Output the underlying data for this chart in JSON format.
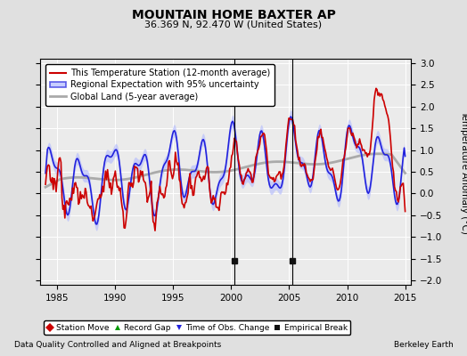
{
  "title": "MOUNTAIN HOME BAXTER AP",
  "subtitle": "36.369 N, 92.470 W (United States)",
  "ylabel": "Temperature Anomaly (°C)",
  "xlabel_note": "Data Quality Controlled and Aligned at Breakpoints",
  "credit": "Berkeley Earth",
  "ylim": [
    -2.1,
    3.1
  ],
  "xlim": [
    1983.5,
    2015.5
  ],
  "yticks": [
    -2,
    -1.5,
    -1,
    -0.5,
    0,
    0.5,
    1,
    1.5,
    2,
    2.5,
    3
  ],
  "xticks": [
    1985,
    1990,
    1995,
    2000,
    2005,
    2010,
    2015
  ],
  "bg_color": "#e0e0e0",
  "plot_bg_color": "#ebebeb",
  "grid_color": "#ffffff",
  "empirical_breaks": [
    2000.3,
    2005.3
  ],
  "uncertainty_color": "#b0b8ff",
  "uncertainty_alpha": 0.6,
  "regional_color": "#2222dd",
  "station_color": "#cc0000",
  "global_color": "#aaaaaa",
  "legend_items": [
    {
      "label": "This Temperature Station (12-month average)",
      "color": "#cc0000",
      "lw": 1.2
    },
    {
      "label": "Regional Expectation with 95% uncertainty",
      "color": "#2222dd",
      "lw": 1.2
    },
    {
      "label": "Global Land (5-year average)",
      "color": "#aaaaaa",
      "lw": 2.0
    }
  ],
  "marker_legend": [
    {
      "label": "Station Move",
      "marker": "D",
      "color": "#cc0000"
    },
    {
      "label": "Record Gap",
      "marker": "^",
      "color": "#009900"
    },
    {
      "label": "Time of Obs. Change",
      "marker": "v",
      "color": "#2222dd"
    },
    {
      "label": "Empirical Break",
      "marker": "s",
      "color": "#111111"
    }
  ]
}
